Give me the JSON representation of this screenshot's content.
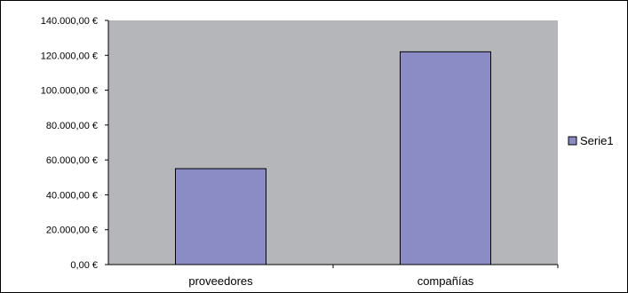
{
  "chart_data": {
    "type": "bar",
    "categories": [
      "proveedores",
      "compañías"
    ],
    "series": [
      {
        "name": "Serie1",
        "values": [
          55000,
          122000
        ]
      }
    ],
    "ylim": [
      0,
      140000
    ],
    "y_ticks": [
      0,
      20000,
      40000,
      60000,
      80000,
      100000,
      120000,
      140000
    ],
    "y_tick_labels": [
      "0,00 €",
      "20.000,00 €",
      "40.000,00 €",
      "60.000,00 €",
      "80.000,00 €",
      "100.000,00 €",
      "120.000,00 €",
      "140.000,00 €"
    ],
    "title": "",
    "xlabel": "",
    "ylabel": "",
    "grid": false,
    "legend_position": "right",
    "colors": {
      "plot_background": "#b5b6b9",
      "bar_fill": "#8b8cc6",
      "bar_stroke": "#000000",
      "axis": "#000000"
    }
  }
}
